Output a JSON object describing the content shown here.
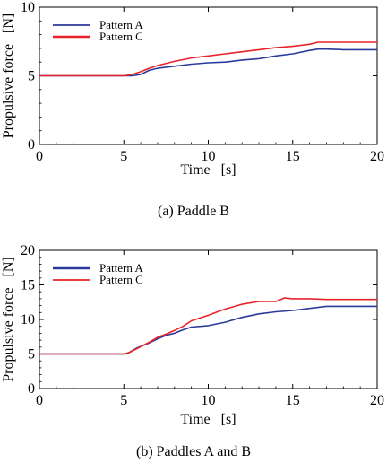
{
  "chart_data": [
    {
      "type": "line",
      "caption": "(a) Paddle B",
      "xlabel": "Time   [s]",
      "ylabel": "Propulsive force   [N]",
      "xlim": [
        0,
        20
      ],
      "ylim": [
        0,
        10
      ],
      "xticks": [
        0,
        5,
        10,
        15,
        20
      ],
      "yticks": [
        0,
        5,
        10
      ],
      "legend_position": "top-left",
      "grid": false,
      "series": [
        {
          "name": "Pattern A",
          "color": "#2b3a9a",
          "x": [
            0,
            5,
            5.5,
            6,
            6.5,
            7,
            8,
            9,
            10,
            11,
            12,
            13,
            14,
            15,
            16,
            16.5,
            17,
            18,
            19,
            20
          ],
          "values": [
            5,
            5,
            5,
            5.1,
            5.4,
            5.55,
            5.7,
            5.85,
            5.95,
            6.0,
            6.15,
            6.25,
            6.45,
            6.6,
            6.85,
            6.95,
            6.95,
            6.9,
            6.9,
            6.9
          ]
        },
        {
          "name": "Pattern C",
          "color": "#e8242a",
          "x": [
            0,
            5,
            5.5,
            6,
            6.5,
            7,
            8,
            9,
            10,
            11,
            12,
            13,
            14,
            15,
            16,
            16.5,
            17,
            18,
            19,
            20
          ],
          "values": [
            5,
            5,
            5.1,
            5.3,
            5.55,
            5.75,
            6.05,
            6.3,
            6.45,
            6.6,
            6.75,
            6.9,
            7.05,
            7.15,
            7.3,
            7.45,
            7.45,
            7.45,
            7.45,
            7.45
          ]
        }
      ]
    },
    {
      "type": "line",
      "caption": "(b) Paddles A and B",
      "xlabel": "Time   [s]",
      "ylabel": "Propulsive force   [N]",
      "xlim": [
        0,
        20
      ],
      "ylim": [
        0,
        20
      ],
      "xticks": [
        0,
        5,
        10,
        15,
        20
      ],
      "yticks": [
        0,
        5,
        10,
        15,
        20
      ],
      "legend_position": "top-left",
      "grid": false,
      "series": [
        {
          "name": "Pattern A",
          "color": "#2b3a9a",
          "x": [
            0,
            5,
            5.3,
            5.8,
            6.5,
            7,
            7.5,
            8,
            8.5,
            9,
            10,
            11,
            12,
            13,
            14,
            15,
            16,
            17,
            18,
            19,
            20
          ],
          "values": [
            5,
            5,
            5.2,
            5.9,
            6.6,
            7.2,
            7.7,
            8.0,
            8.5,
            8.9,
            9.1,
            9.6,
            10.3,
            10.8,
            11.1,
            11.3,
            11.6,
            11.9,
            11.9,
            11.9,
            11.9
          ]
        },
        {
          "name": "Pattern C",
          "color": "#e8242a",
          "x": [
            0,
            5,
            5.3,
            5.8,
            6.5,
            7,
            7.5,
            8,
            8.5,
            9,
            10,
            11,
            12,
            13,
            14,
            14.5,
            15,
            16,
            17,
            18,
            19,
            20
          ],
          "values": [
            5,
            5,
            5.2,
            5.8,
            6.7,
            7.4,
            7.9,
            8.4,
            9.0,
            9.8,
            10.6,
            11.5,
            12.2,
            12.6,
            12.6,
            13.1,
            13.0,
            13.0,
            12.9,
            12.9,
            12.9,
            12.9
          ]
        }
      ]
    }
  ]
}
